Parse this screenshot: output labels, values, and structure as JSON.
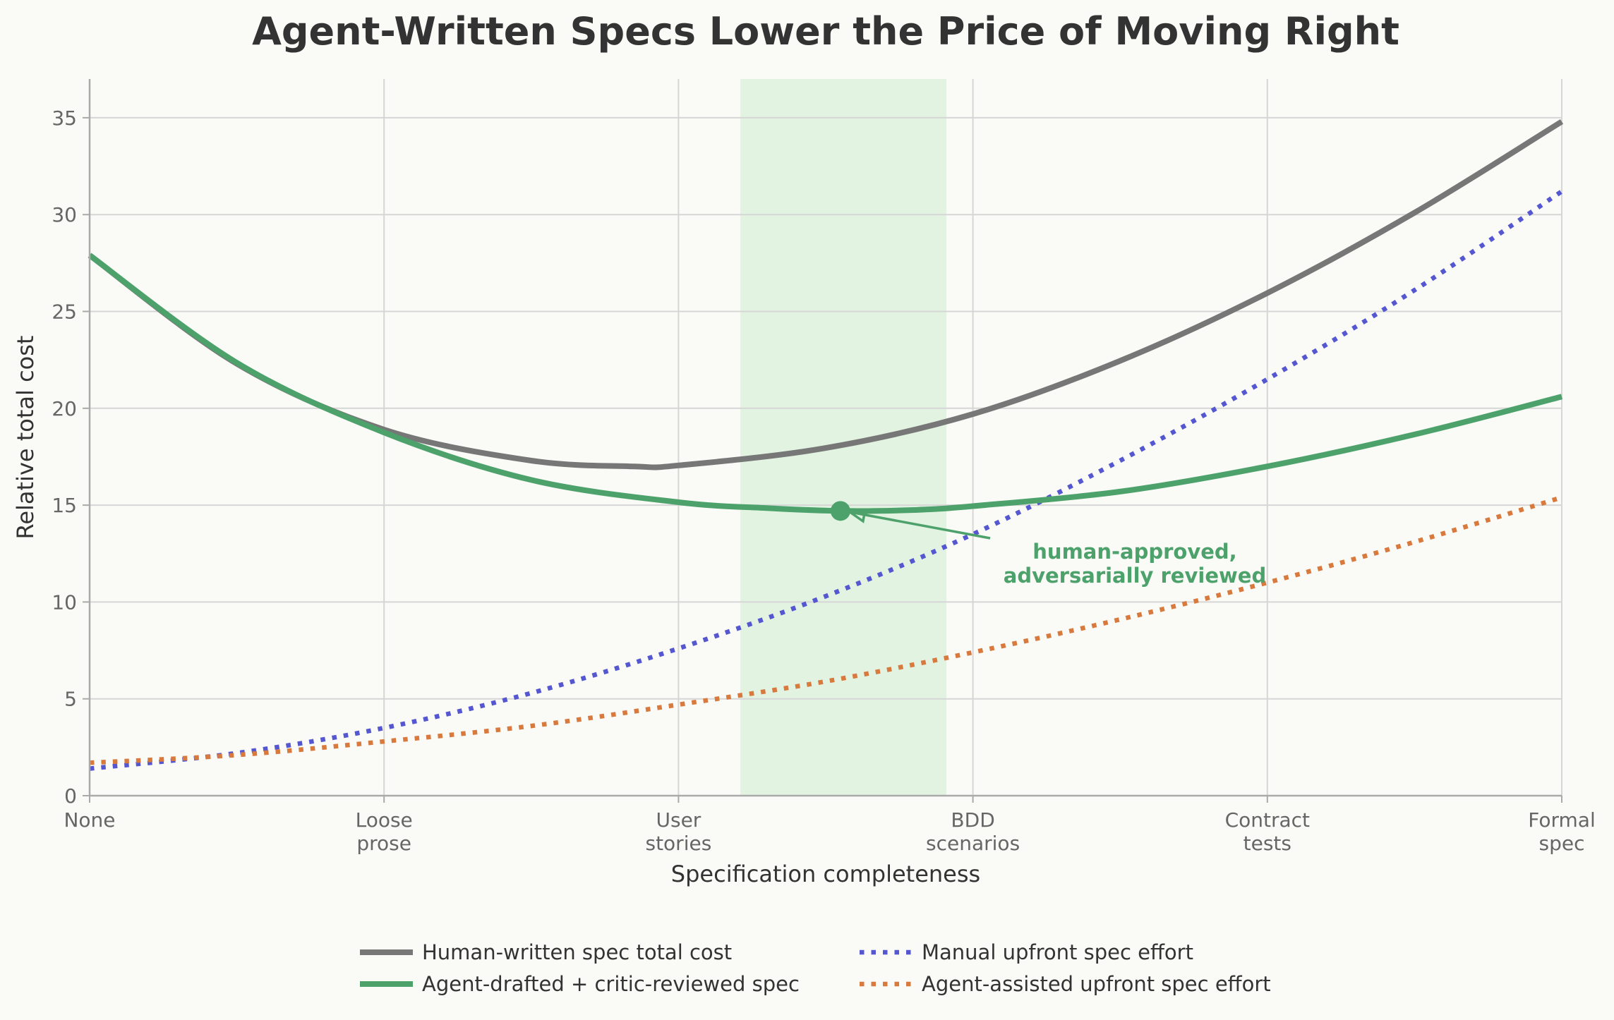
{
  "chart_data": {
    "type": "line",
    "title": "Agent-Written Specs Lower the Price of Moving Right",
    "xlabel": "Specification completeness",
    "ylabel": "Relative total cost",
    "xlim": [
      0,
      5
    ],
    "ylim": [
      0,
      37
    ],
    "y_ticks": [
      0,
      5,
      10,
      15,
      20,
      25,
      30,
      35
    ],
    "grid": true,
    "categories": [
      [
        "None"
      ],
      [
        "Loose",
        "prose"
      ],
      [
        "User",
        "stories"
      ],
      [
        "BDD",
        "scenarios"
      ],
      [
        "Contract",
        "tests"
      ],
      [
        "Formal",
        "spec"
      ]
    ],
    "sweet_spot": {
      "x_range": [
        2.21,
        2.91
      ],
      "color": "#e2f3e2"
    },
    "series": [
      {
        "name": "Human-written spec total cost",
        "style": "solid",
        "color": "#777777",
        "x": [
          0,
          0.5,
          1,
          1.5,
          1.85,
          2,
          2.5,
          3,
          3.5,
          4,
          4.5,
          5
        ],
        "values": [
          27.9,
          22.3,
          18.9,
          17.3,
          17.0,
          17.05,
          17.95,
          19.7,
          22.45,
          25.95,
          30.1,
          34.8
        ]
      },
      {
        "name": "Agent-drafted + critic-reviewed spec",
        "style": "solid",
        "color": "#4da26b",
        "x": [
          0,
          0.5,
          1,
          1.5,
          2,
          2.3,
          2.55,
          2.8,
          3,
          3.5,
          4,
          4.5,
          5
        ],
        "values": [
          27.9,
          22.35,
          18.75,
          16.3,
          15.15,
          14.85,
          14.7,
          14.75,
          14.95,
          15.7,
          17.0,
          18.65,
          20.6
        ]
      },
      {
        "name": "Manual upfront spec effort",
        "style": "dotted",
        "color": "#5557d1",
        "x": [
          0,
          0.5,
          1,
          1.5,
          2,
          2.5,
          3,
          3.5,
          4,
          4.5,
          5
        ],
        "values": [
          1.4,
          2.2,
          3.5,
          5.3,
          7.6,
          10.3,
          13.5,
          17.3,
          21.5,
          26.1,
          31.2
        ]
      },
      {
        "name": "Agent-assisted upfront spec effort",
        "style": "dotted",
        "color": "#d87a3d",
        "x": [
          0,
          0.5,
          1,
          1.5,
          2,
          2.5,
          3,
          3.5,
          4,
          4.5,
          5
        ],
        "values": [
          1.7,
          2.1,
          2.8,
          3.6,
          4.7,
          5.9,
          7.4,
          9.1,
          11.0,
          13.1,
          15.4
        ]
      }
    ],
    "annotation": {
      "lines": [
        "human-approved,",
        "adversarially reviewed"
      ],
      "point": [
        2.55,
        14.7
      ],
      "color": "#4da26b"
    },
    "legend": {
      "placement": "bottom-center",
      "entries": [
        {
          "label": "Human-written spec total cost",
          "style": "solid",
          "color": "#777777"
        },
        {
          "label": "Agent-drafted + critic-reviewed spec",
          "style": "solid",
          "color": "#4da26b"
        },
        {
          "label": "Manual upfront spec effort",
          "style": "dotted",
          "color": "#5557d1"
        },
        {
          "label": "Agent-assisted upfront spec effort",
          "style": "dotted",
          "color": "#d87a3d"
        }
      ]
    }
  }
}
